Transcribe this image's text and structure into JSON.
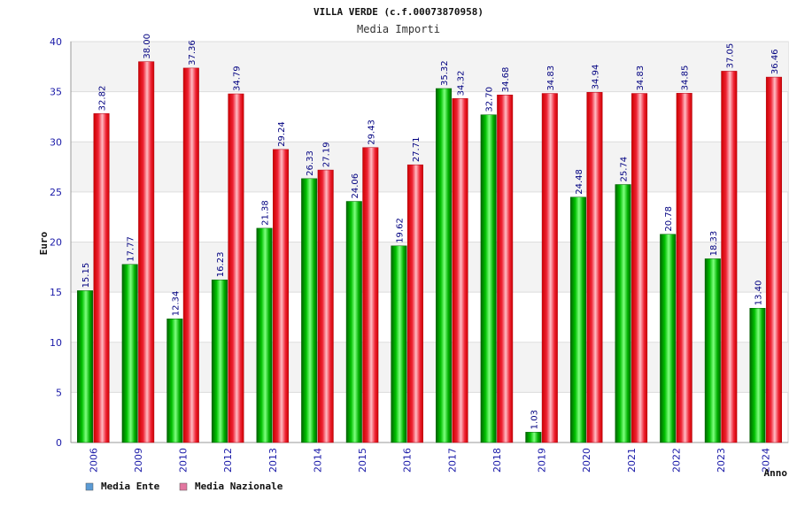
{
  "chart_data": {
    "type": "bar",
    "title": "VILLA VERDE (c.f.00073870958)",
    "subtitle": "Media Importi",
    "xlabel": "Anno",
    "ylabel": "Euro",
    "ylim": [
      0,
      40
    ],
    "yticks": [
      0,
      5,
      10,
      15,
      20,
      25,
      30,
      35,
      40
    ],
    "categories": [
      "2006",
      "2009",
      "2010",
      "2012",
      "2013",
      "2014",
      "2015",
      "2016",
      "2017",
      "2018",
      "2019",
      "2020",
      "2021",
      "2022",
      "2023",
      "2024"
    ],
    "series": [
      {
        "name": "Media Ente",
        "legend_color": "#5b9bd5",
        "bar_color": "#00b000",
        "values": [
          15.15,
          17.77,
          12.34,
          16.23,
          21.38,
          26.33,
          24.06,
          19.62,
          35.32,
          32.7,
          1.03,
          24.48,
          25.74,
          20.78,
          18.33,
          13.4
        ],
        "labels": [
          "15.15",
          "17.77",
          "12.34",
          "16.23",
          "21.38",
          "26.33",
          "24.06",
          "19.62",
          "35.32",
          "32.70",
          "1.03",
          "24.48",
          "25.74",
          "20.78",
          "18.33",
          "13.40"
        ]
      },
      {
        "name": "Media Nazionale",
        "legend_color": "#e377a0",
        "bar_color": "#ee1122",
        "values": [
          32.82,
          38.0,
          37.36,
          34.79,
          29.24,
          27.19,
          29.43,
          27.71,
          34.32,
          34.68,
          34.83,
          34.94,
          34.83,
          34.85,
          37.05,
          36.46
        ],
        "labels": [
          "32.82",
          "38.00",
          "37.36",
          "34.79",
          "29.24",
          "27.19",
          "29.43",
          "27.71",
          "34.32",
          "34.68",
          "34.83",
          "34.94",
          "34.83",
          "34.85",
          "37.05",
          "36.46"
        ]
      }
    ],
    "grid": true,
    "legend_position": "bottom-left"
  }
}
